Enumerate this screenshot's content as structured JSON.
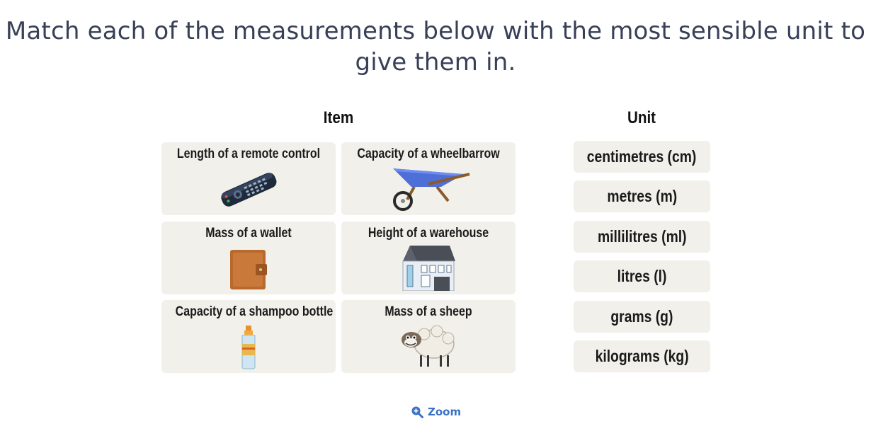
{
  "question": {
    "line1": "Match each of the measurements below with the most sensible unit to",
    "line2": "give them in."
  },
  "columns": {
    "item": "Item",
    "unit": "Unit"
  },
  "items": [
    {
      "label": "Length of a remote control",
      "icon": "remote-control-icon"
    },
    {
      "label": "Capacity of a wheelbarrow",
      "icon": "wheelbarrow-icon"
    },
    {
      "label": "Mass of a wallet",
      "icon": "wallet-icon"
    },
    {
      "label": "Height of a warehouse",
      "icon": "warehouse-icon"
    },
    {
      "label": "Capacity of a shampoo bottle",
      "icon": "shampoo-bottle-icon"
    },
    {
      "label": "Mass of a sheep",
      "icon": "sheep-icon"
    }
  ],
  "units": [
    "centimetres (cm)",
    "metres (m)",
    "millilitres (ml)",
    "litres (l)",
    "grams (g)",
    "kilograms (kg)"
  ],
  "zoom": {
    "label": "Zoom",
    "icon": "zoom-in-icon"
  },
  "colors": {
    "card_bg": "#f1f0eb",
    "accent": "#3a72c4",
    "title": "#384058"
  }
}
